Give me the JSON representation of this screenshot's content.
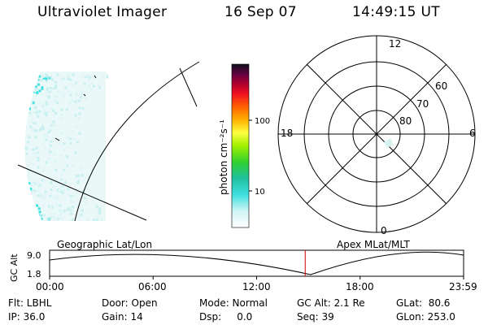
{
  "header": {
    "instrument": "Ultraviolet Imager",
    "date": "16 Sep 07",
    "time": "14:49:15 UT"
  },
  "colorbar": {
    "unit_label": "photon cm⁻²s⁻¹",
    "ticks": [
      "100",
      "10"
    ]
  },
  "polar": {
    "mlt_labels": {
      "top": "12",
      "left": "18",
      "right": "6",
      "bottom": "0"
    },
    "lat_labels": [
      "60",
      "70",
      "80"
    ]
  },
  "timeline": {
    "left_title": "Geographic Lat/Lon",
    "right_title": "Apex MLat/MLT",
    "axis_label": "GC Alt",
    "y_ticks": [
      "9.0",
      "1.8"
    ],
    "x_ticks": [
      "00:00",
      "06:00",
      "12:00",
      "18:00",
      "23:59"
    ],
    "marker_fraction": 0.6174
  },
  "status": {
    "row1": {
      "filter": "Flt: LBHL",
      "door": "Door: Open",
      "mode": "Mode: Normal",
      "gc_alt": "GC Alt: 2.1 Re",
      "glat": "GLat:  80.6"
    },
    "row2": {
      "ip": "IP: 36.0",
      "gain": "Gain: 14",
      "dsp": "Dsp:     0.0",
      "seq": "Seq: 39",
      "glon": "GLon: 253.0"
    }
  },
  "colors": {
    "background": "#ffffff",
    "aurora_cyan": "#40e0e0",
    "aurora_pale": "#c8f0f0",
    "marker": "#cc0000"
  }
}
